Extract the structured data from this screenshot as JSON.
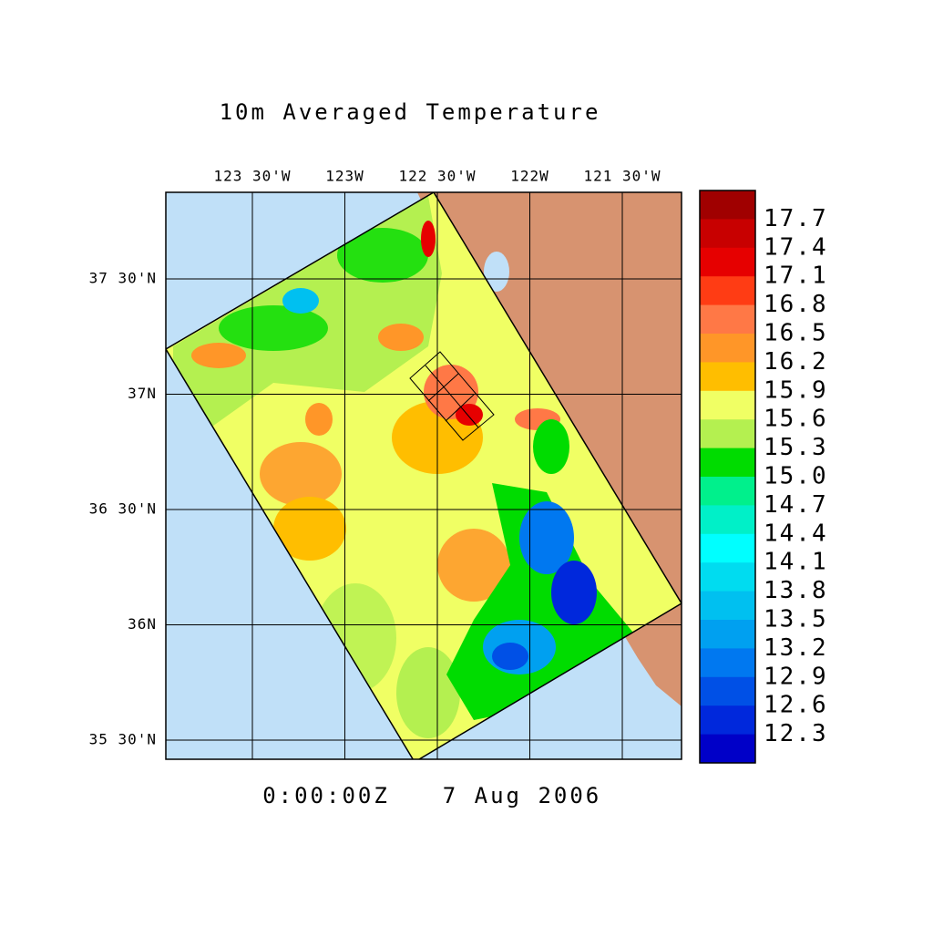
{
  "title": "10m Averaged Temperature",
  "timestamp": {
    "time": "0:00:00Z",
    "date": "7 Aug 2006"
  },
  "lon_labels": [
    "123 30'W",
    "123W",
    "122 30'W",
    "122W",
    "121 30'W"
  ],
  "lat_labels": [
    "37 30'N",
    "37N",
    "36 30'N",
    "36N",
    "35 30'N"
  ],
  "colorbar": {
    "labels": [
      "17.7",
      "17.4",
      "17.1",
      "16.8",
      "16.5",
      "16.2",
      "15.9",
      "15.6",
      "15.3",
      "15.0",
      "14.7",
      "14.4",
      "14.1",
      "13.8",
      "13.5",
      "13.2",
      "12.9",
      "12.6",
      "12.3"
    ],
    "colors": [
      "#a00000",
      "#c80000",
      "#e60000",
      "#ff3c14",
      "#ff7846",
      "#ff9628",
      "#ffbe00",
      "#f0ff64",
      "#b4f050",
      "#00dc00",
      "#00f08c",
      "#00f0c8",
      "#00ffff",
      "#00dcf0",
      "#00c0f0",
      "#00a0f0",
      "#0078f0",
      "#0050e6",
      "#0028dc",
      "#0000c8"
    ]
  }
}
